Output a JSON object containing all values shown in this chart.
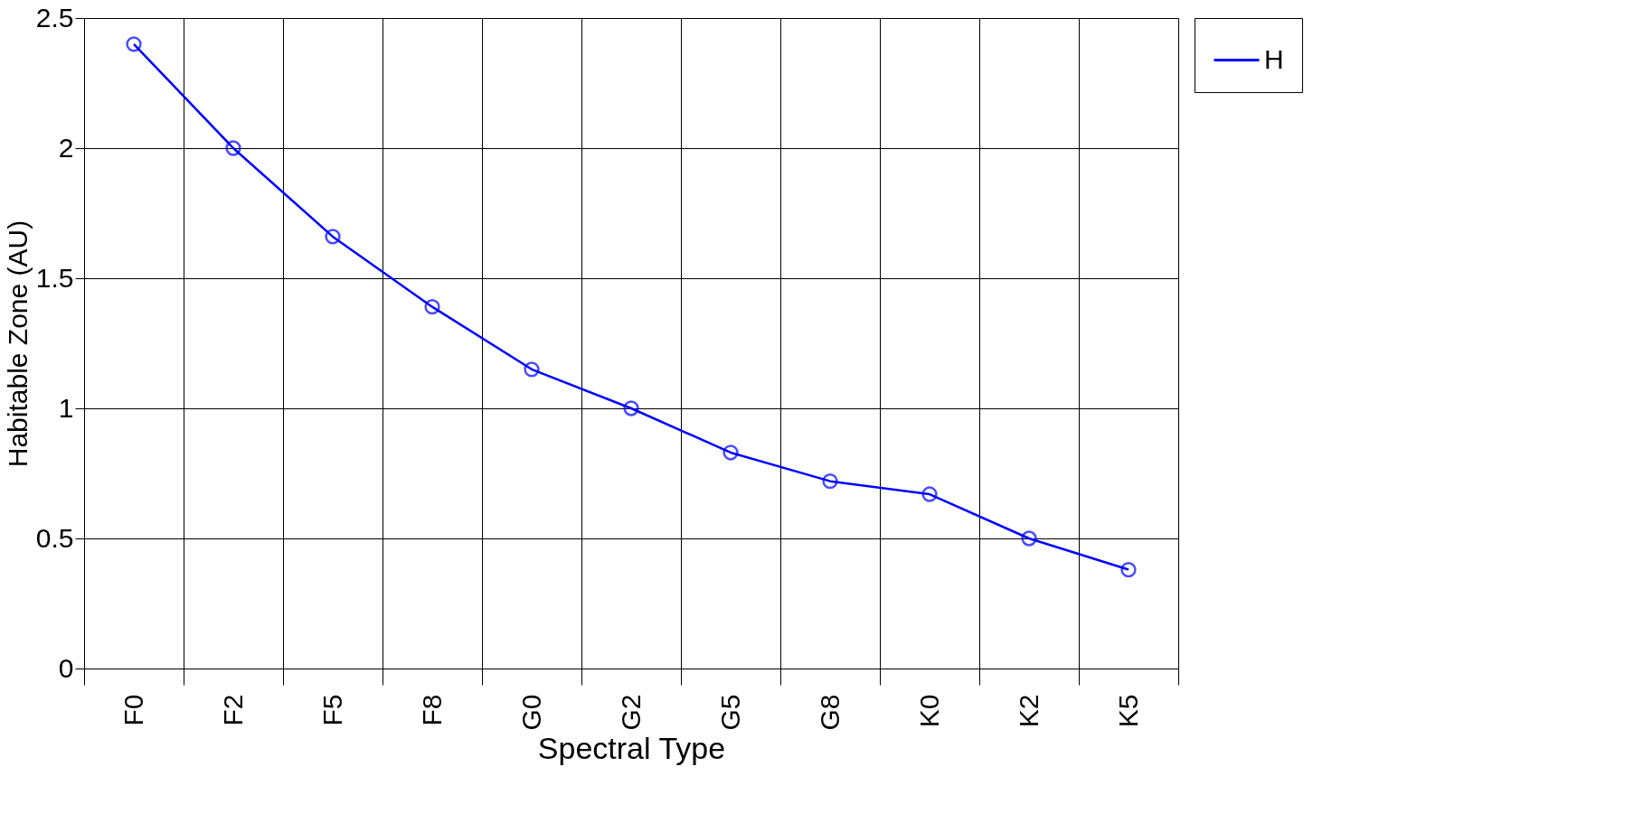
{
  "chart_data": {
    "type": "line",
    "xlabel": "Spectral Type",
    "ylabel": "Habitable Zone (AU)",
    "categories": [
      "F0",
      "F2",
      "F5",
      "F8",
      "G0",
      "G2",
      "G5",
      "G8",
      "K0",
      "K2",
      "K5"
    ],
    "series": [
      {
        "name": "H",
        "color": "#0000ff",
        "values": [
          2.4,
          2.0,
          1.66,
          1.39,
          1.15,
          1.0,
          0.83,
          0.72,
          0.67,
          0.5,
          0.38
        ]
      }
    ],
    "ylim": [
      0,
      2.5
    ],
    "yticks": [
      0,
      0.5,
      1,
      1.5,
      2,
      2.5
    ],
    "grid": true,
    "legend": "right",
    "marker": "circle",
    "line_style": "solid"
  }
}
